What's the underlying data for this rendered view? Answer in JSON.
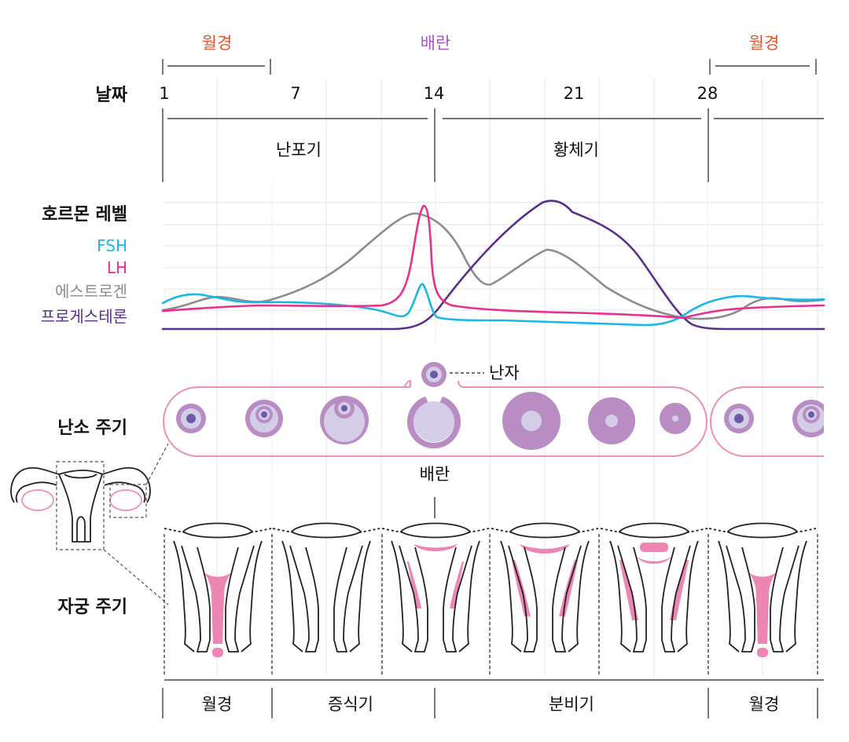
{
  "top_labels": {
    "menstruation_left": "월경",
    "ovulation": "배란",
    "menstruation_right": "월경"
  },
  "row_titles": {
    "days": "날짜",
    "hormones": "호르몬 레벨",
    "ovarian": "난소 주기",
    "uterine": "자궁 주기"
  },
  "day_ticks": [
    "1",
    "7",
    "14",
    "21",
    "28"
  ],
  "ovarian_phases": {
    "follicular": "난포기",
    "luteal": "황체기"
  },
  "hormone_legend": [
    {
      "name": "FSH",
      "color": "#1ab8e8"
    },
    {
      "name": "LH",
      "color": "#e8308f"
    },
    {
      "name": "에스트로겐",
      "color": "#8c8c8c"
    },
    {
      "name": "프로게스테론",
      "color": "#5a2e8c"
    }
  ],
  "ovarian_labels": {
    "egg": "난자",
    "ovulation": "배란"
  },
  "uterine_phases": [
    "월경",
    "증식기",
    "분비기",
    "월경"
  ],
  "colors": {
    "menstruation": "#e0542a",
    "ovulation": "#a855c8",
    "follicle": "#b98cc4",
    "follicle_light": "#d3cde8",
    "follicle_core": "#6a5aa8",
    "ovary_outline": "#ee8fb8",
    "endometrium": "#ee86b4"
  }
}
